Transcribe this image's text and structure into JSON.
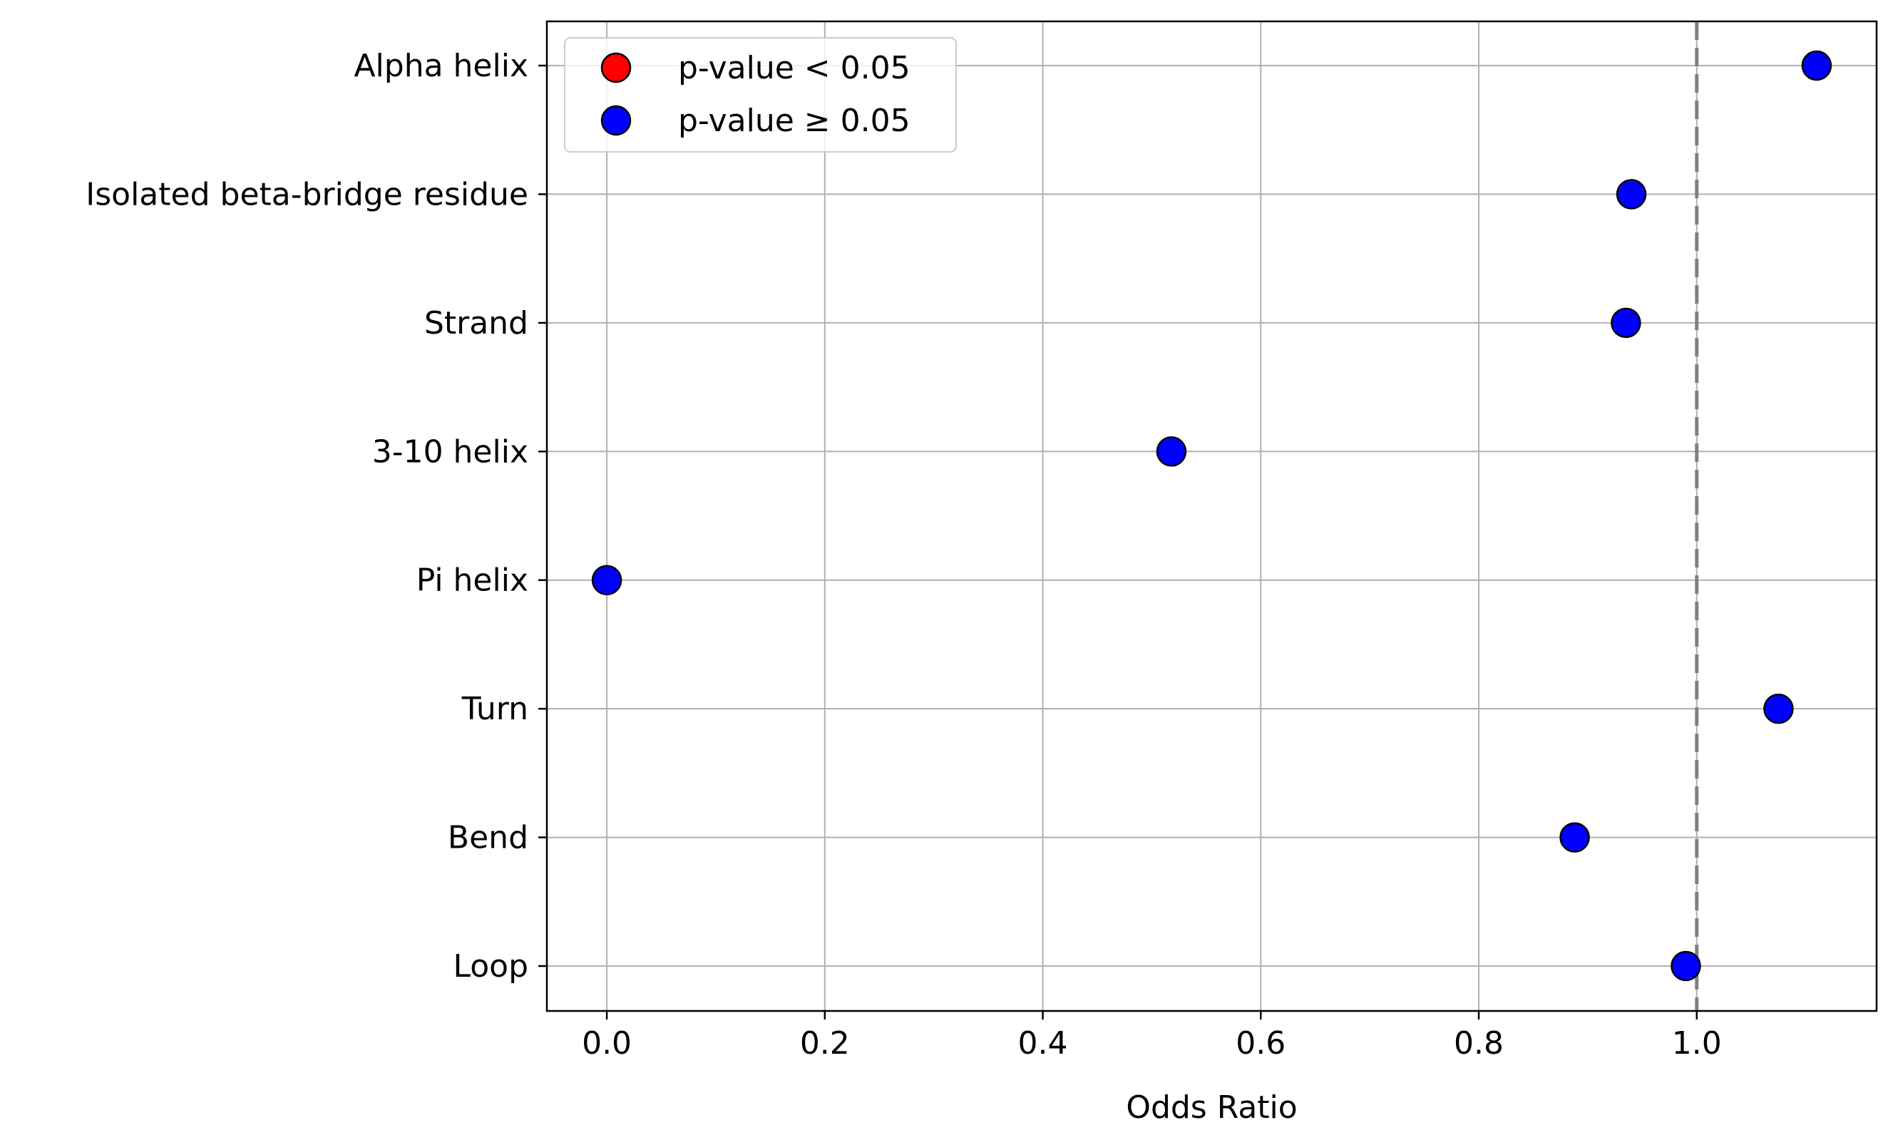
{
  "chart_data": {
    "type": "scatter",
    "title": "",
    "xlabel": "Odds Ratio",
    "ylabel": "",
    "xlim": [
      -0.055,
      1.165
    ],
    "x_ticks": [
      0.0,
      0.2,
      0.4,
      0.6,
      0.8,
      1.0
    ],
    "x_tick_labels": [
      "0.0",
      "0.2",
      "0.4",
      "0.6",
      "0.8",
      "1.0"
    ],
    "categories": [
      "Alpha helix",
      "Isolated beta-bridge residue",
      "Strand",
      "3-10 helix",
      "Pi helix",
      "Turn",
      "Bend",
      "Loop"
    ],
    "values": [
      1.11,
      0.94,
      0.935,
      0.518,
      0.0,
      1.075,
      0.888,
      0.99
    ],
    "significant": [
      false,
      false,
      false,
      false,
      false,
      false,
      false,
      false
    ],
    "reference_line": {
      "x": 1.0,
      "style": "dashed",
      "color": "#808080"
    },
    "grid": true,
    "legend": {
      "placement": "upper-left",
      "entries": [
        {
          "label": "p-value < 0.05",
          "color": "#ff0000"
        },
        {
          "label": "p-value ≥ 0.05",
          "color": "#0000ff"
        }
      ]
    },
    "colors": {
      "significant": "#ff0000",
      "not_significant": "#0000ff",
      "marker_edge": "#000000",
      "grid": "#b0b0b0"
    }
  }
}
